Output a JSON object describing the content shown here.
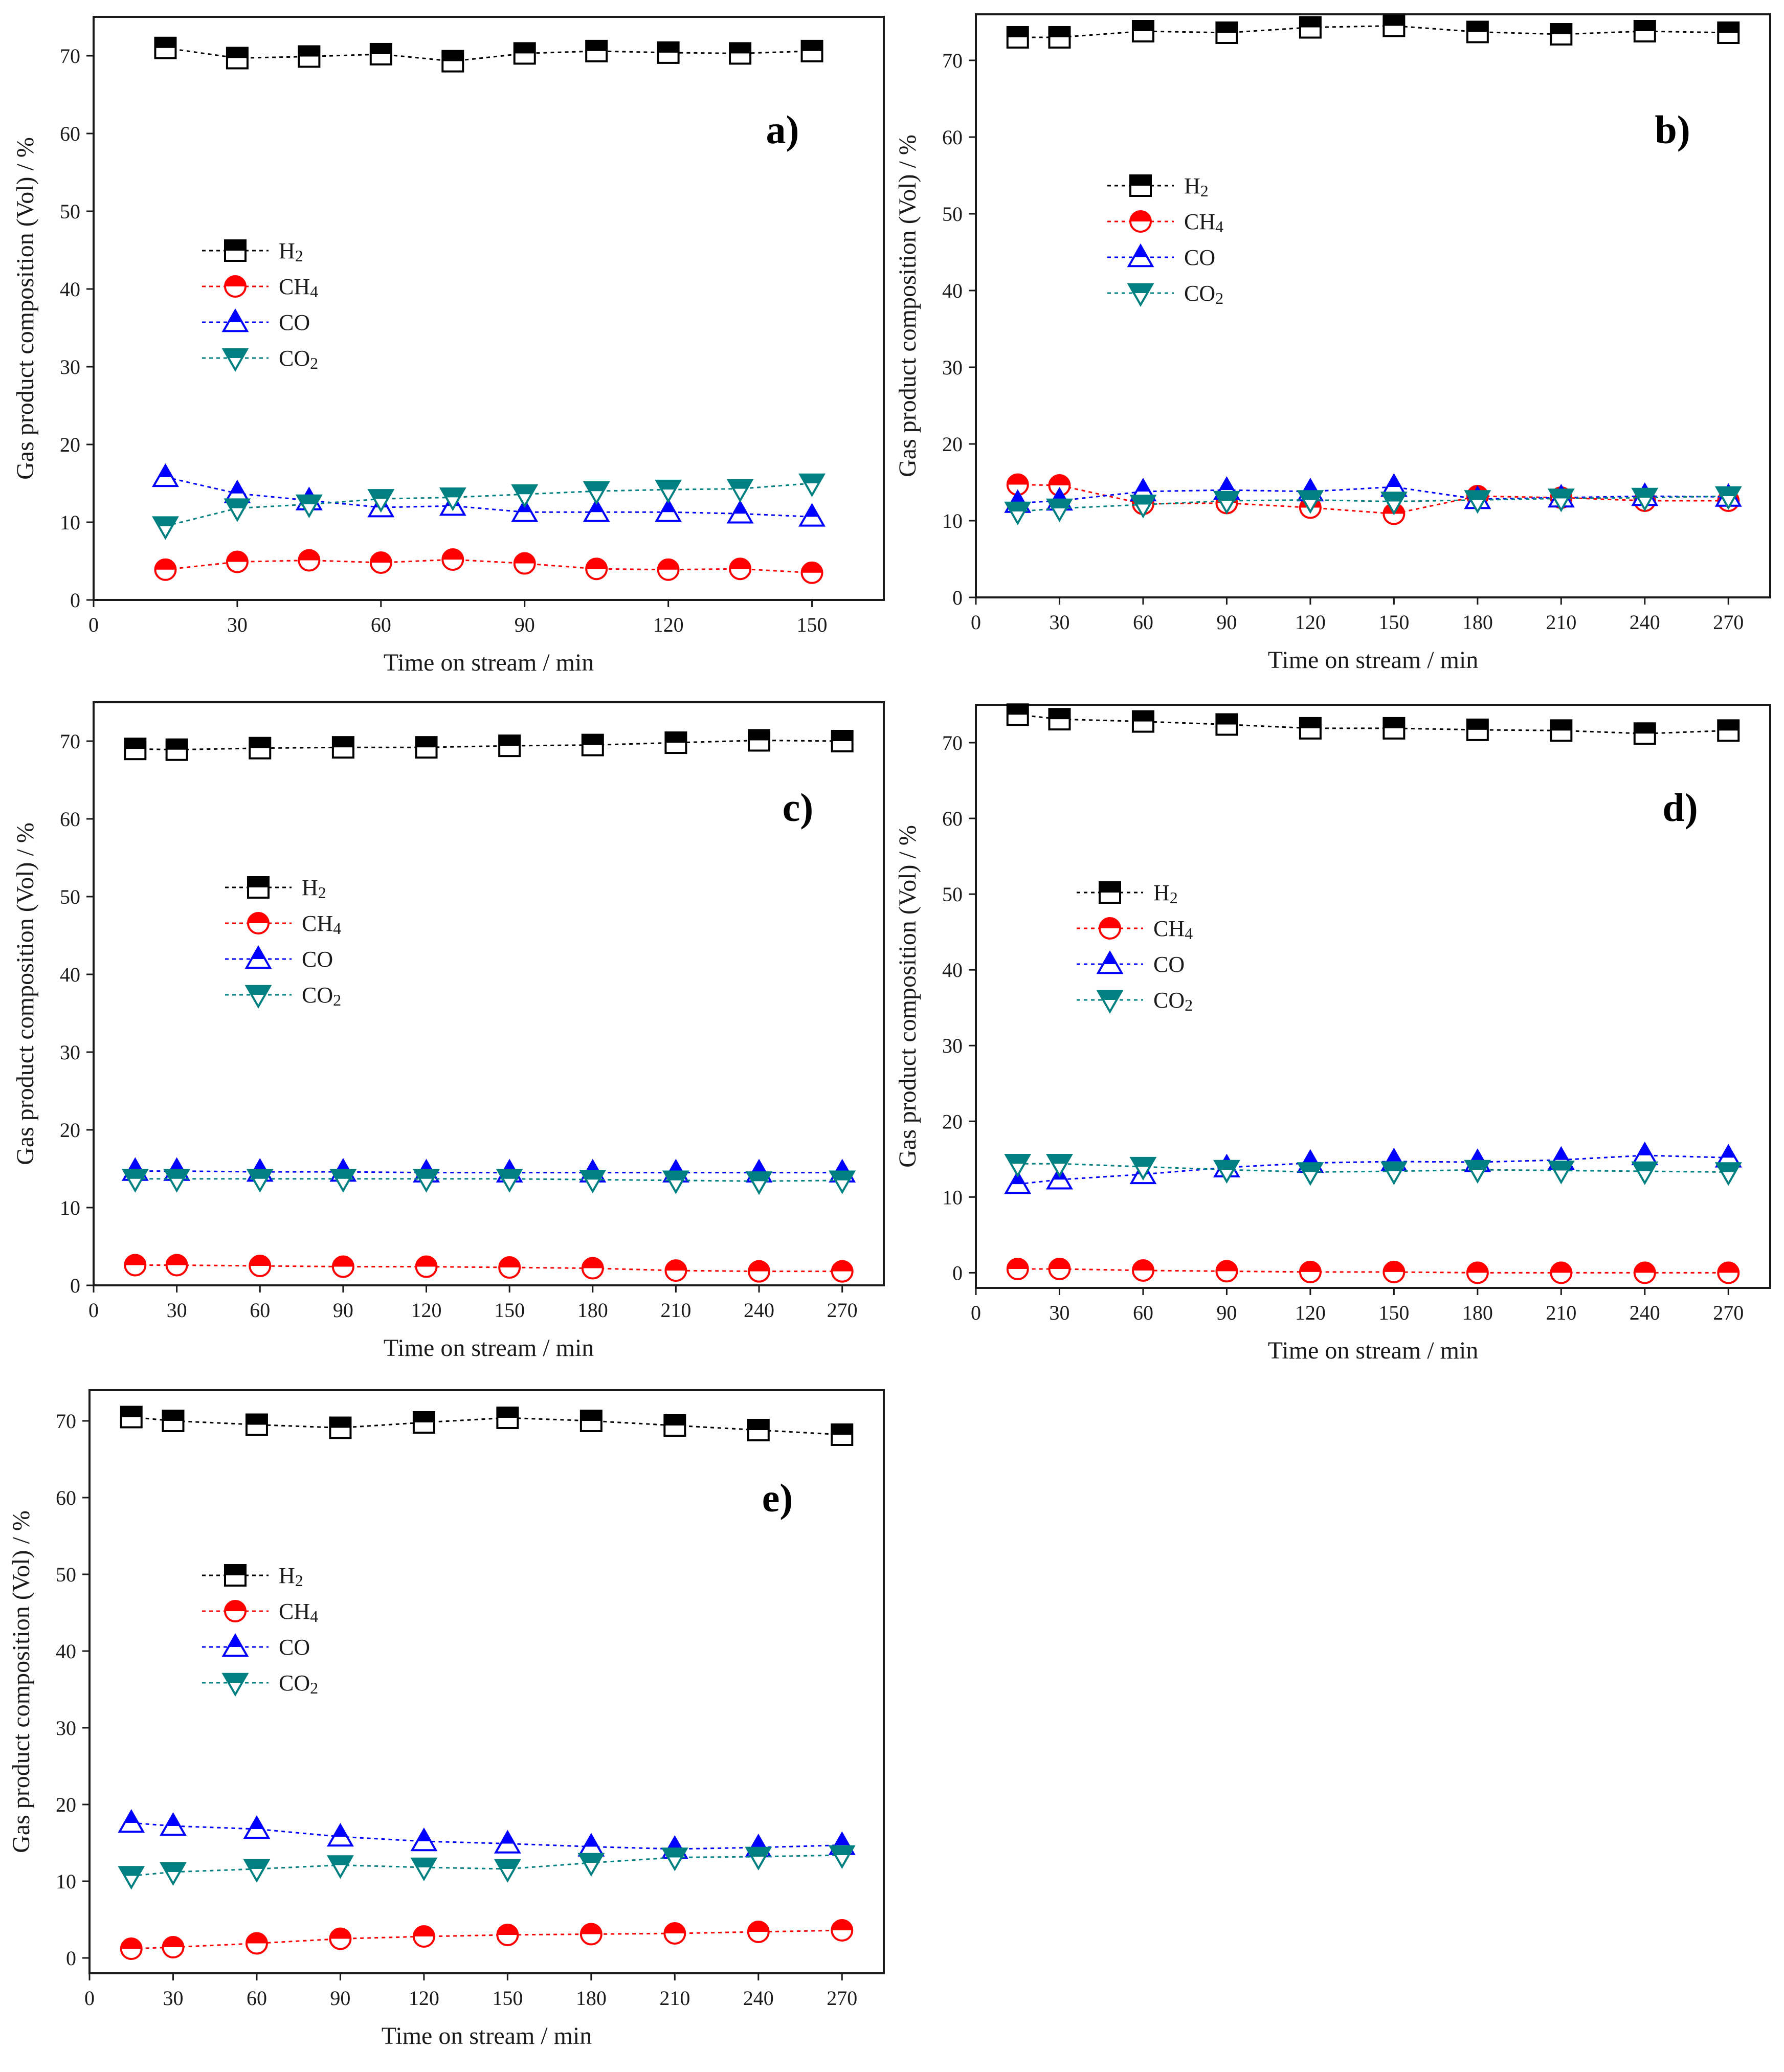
{
  "figure_title": "",
  "series_styles": [
    {
      "name": "H2",
      "base": "H",
      "sub": "2",
      "color": "#000000",
      "marker": "square"
    },
    {
      "name": "CH4",
      "base": "CH",
      "sub": "4",
      "color": "#ff0000",
      "marker": "circle"
    },
    {
      "name": "CO",
      "base": "CO",
      "sub": "",
      "color": "#0000ff",
      "marker": "triangle-up"
    },
    {
      "name": "CO2",
      "base": "CO",
      "sub": "2",
      "color": "#008080",
      "marker": "triangle-down"
    }
  ],
  "chart_data": [
    {
      "panel": "a)",
      "type": "line",
      "xlabel": "Time on stream / min",
      "ylabel": "Gas product composition (Vol) / %",
      "xlim": [
        0,
        165
      ],
      "ylim": [
        0,
        75
      ],
      "xticks": [
        0,
        30,
        60,
        90,
        120,
        150
      ],
      "yticks": [
        0,
        10,
        20,
        30,
        40,
        50,
        60,
        70
      ],
      "x": [
        15,
        30,
        45,
        60,
        75,
        90,
        105,
        120,
        135,
        150
      ],
      "series": [
        {
          "name": "H2",
          "values": [
            71.0,
            69.7,
            69.9,
            70.2,
            69.3,
            70.3,
            70.6,
            70.4,
            70.3,
            70.6
          ]
        },
        {
          "name": "CH4",
          "values": [
            3.9,
            4.9,
            5.1,
            4.8,
            5.2,
            4.7,
            4.0,
            3.9,
            4.0,
            3.5
          ]
        },
        {
          "name": "CO",
          "values": [
            15.8,
            13.7,
            12.8,
            11.9,
            12.1,
            11.3,
            11.3,
            11.3,
            11.1,
            10.7
          ]
        },
        {
          "name": "CO2",
          "values": [
            9.5,
            11.8,
            12.3,
            13.0,
            13.2,
            13.6,
            14.0,
            14.2,
            14.3,
            15.0
          ]
        }
      ]
    },
    {
      "panel": "b)",
      "type": "line",
      "xlabel": "Time on stream / min",
      "ylabel": "Gas product composition (Vol) / %",
      "xlim": [
        0,
        285
      ],
      "ylim": [
        0,
        76
      ],
      "xticks": [
        0,
        30,
        60,
        90,
        120,
        150,
        180,
        210,
        240,
        270
      ],
      "yticks": [
        0,
        10,
        20,
        30,
        40,
        50,
        60,
        70
      ],
      "x": [
        15,
        30,
        60,
        90,
        120,
        150,
        180,
        210,
        240,
        270
      ],
      "series": [
        {
          "name": "H2",
          "values": [
            73.0,
            73.0,
            73.8,
            73.6,
            74.3,
            74.5,
            73.7,
            73.4,
            73.8,
            73.6
          ]
        },
        {
          "name": "CH4",
          "values": [
            14.7,
            14.6,
            12.2,
            12.3,
            11.7,
            10.9,
            13.2,
            13.0,
            12.6,
            12.6
          ]
        },
        {
          "name": "CO",
          "values": [
            12.3,
            12.6,
            13.8,
            14.0,
            13.8,
            14.4,
            12.8,
            13.0,
            13.2,
            13.1
          ]
        },
        {
          "name": "CO2",
          "values": [
            11.2,
            11.6,
            12.1,
            12.6,
            12.7,
            12.5,
            12.7,
            12.9,
            13.0,
            13.2
          ]
        }
      ]
    },
    {
      "panel": "c)",
      "type": "line",
      "xlabel": "Time on stream / min",
      "ylabel": "Gas product composition (Vol) / %",
      "xlim": [
        0,
        285
      ],
      "ylim": [
        0,
        75
      ],
      "xticks": [
        0,
        30,
        60,
        90,
        120,
        150,
        180,
        210,
        240,
        270
      ],
      "yticks": [
        0,
        10,
        20,
        30,
        40,
        50,
        60,
        70
      ],
      "x": [
        15,
        30,
        60,
        90,
        120,
        150,
        180,
        210,
        240,
        270
      ],
      "series": [
        {
          "name": "H2",
          "values": [
            69.0,
            68.9,
            69.1,
            69.2,
            69.2,
            69.4,
            69.5,
            69.8,
            70.1,
            70.0
          ]
        },
        {
          "name": "CH4",
          "values": [
            2.6,
            2.6,
            2.5,
            2.4,
            2.4,
            2.3,
            2.2,
            1.9,
            1.8,
            1.8
          ]
        },
        {
          "name": "CO",
          "values": [
            14.7,
            14.7,
            14.6,
            14.6,
            14.5,
            14.5,
            14.5,
            14.5,
            14.5,
            14.5
          ]
        },
        {
          "name": "CO2",
          "values": [
            13.7,
            13.7,
            13.7,
            13.7,
            13.7,
            13.7,
            13.6,
            13.5,
            13.4,
            13.5
          ]
        }
      ]
    },
    {
      "panel": "d)",
      "type": "line",
      "xlabel": "Time on stream / min",
      "ylabel": "Gas product composition (Vol) / %",
      "xlim": [
        0,
        285
      ],
      "ylim": [
        -2,
        75
      ],
      "xticks": [
        0,
        30,
        60,
        90,
        120,
        150,
        180,
        210,
        240,
        270
      ],
      "yticks": [
        0,
        10,
        20,
        30,
        40,
        50,
        60,
        70
      ],
      "x": [
        15,
        30,
        60,
        90,
        120,
        150,
        180,
        210,
        240,
        270
      ],
      "series": [
        {
          "name": "H2",
          "values": [
            73.7,
            73.1,
            72.8,
            72.4,
            71.9,
            71.9,
            71.7,
            71.6,
            71.2,
            71.6
          ]
        },
        {
          "name": "CH4",
          "values": [
            0.5,
            0.5,
            0.3,
            0.2,
            0.1,
            0.1,
            0.0,
            0.0,
            0.0,
            0.0
          ]
        },
        {
          "name": "CO",
          "values": [
            11.7,
            12.3,
            13.0,
            13.9,
            14.5,
            14.7,
            14.6,
            14.9,
            15.5,
            15.2
          ]
        },
        {
          "name": "CO2",
          "values": [
            14.4,
            14.4,
            14.0,
            13.6,
            13.3,
            13.4,
            13.6,
            13.5,
            13.4,
            13.3
          ]
        }
      ]
    },
    {
      "panel": "e)",
      "type": "line",
      "xlabel": "Time on stream / min",
      "ylabel": "Gas product composition (Vol) / %",
      "xlim": [
        0,
        285
      ],
      "ylim": [
        -2,
        74
      ],
      "xticks": [
        0,
        30,
        60,
        90,
        120,
        150,
        180,
        210,
        240,
        270
      ],
      "yticks": [
        0,
        10,
        20,
        30,
        40,
        50,
        60,
        70
      ],
      "x": [
        15,
        30,
        60,
        90,
        120,
        150,
        180,
        210,
        240,
        270
      ],
      "series": [
        {
          "name": "H2",
          "values": [
            70.5,
            70.0,
            69.5,
            69.1,
            69.8,
            70.4,
            70.0,
            69.4,
            68.8,
            68.2
          ]
        },
        {
          "name": "CH4",
          "values": [
            1.2,
            1.4,
            1.9,
            2.5,
            2.8,
            3.0,
            3.1,
            3.2,
            3.4,
            3.6
          ]
        },
        {
          "name": "CO",
          "values": [
            17.6,
            17.2,
            16.8,
            15.8,
            15.2,
            14.9,
            14.5,
            14.2,
            14.4,
            14.7
          ]
        },
        {
          "name": "CO2",
          "values": [
            10.7,
            11.2,
            11.6,
            12.1,
            11.8,
            11.6,
            12.4,
            13.1,
            13.2,
            13.4
          ]
        }
      ]
    }
  ]
}
